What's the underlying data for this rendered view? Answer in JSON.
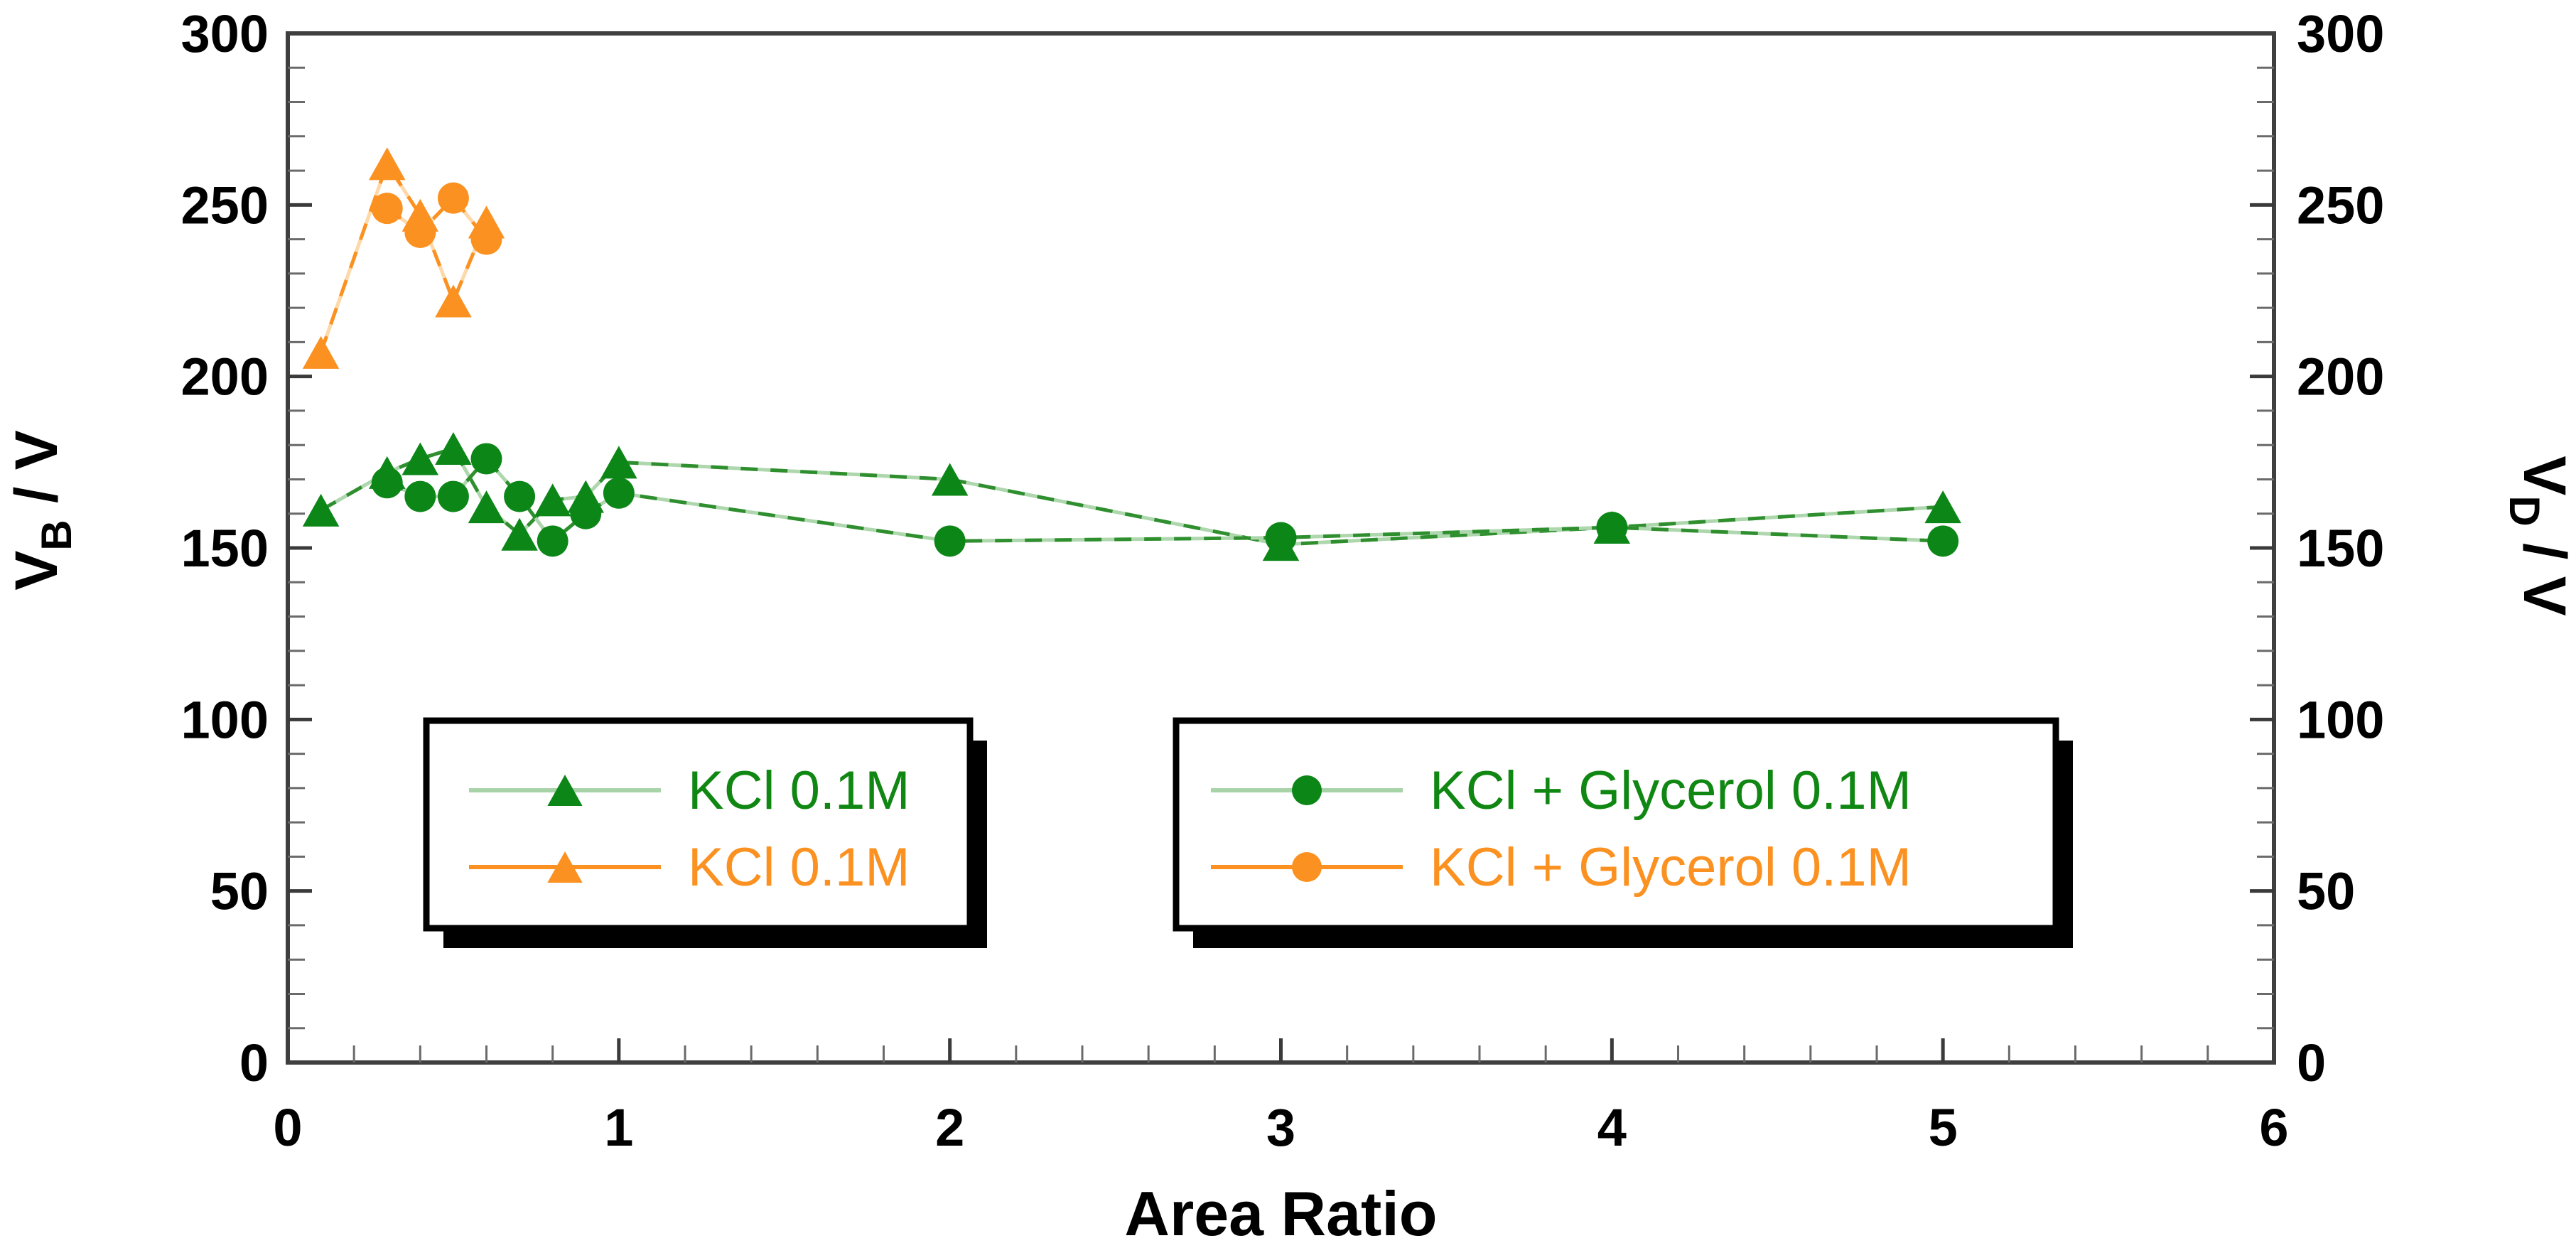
{
  "chart_data": {
    "type": "scatter",
    "subtype": "line-scatter, dual-y-axis",
    "title": "",
    "xlabel": "Area Ratio",
    "x_axis": {
      "min": 0,
      "max": 6,
      "major_tick_values": [
        0,
        1,
        2,
        3,
        4,
        5,
        6
      ],
      "minor_tick_step": 0.2,
      "tick_labels": [
        "0",
        "1",
        "2",
        "3",
        "4",
        "5",
        "6"
      ]
    },
    "y_axis_left": {
      "label_main": "V",
      "label_sub": "B",
      "label_rest": " / V",
      "min": 0,
      "max": 300,
      "major_tick_values": [
        0,
        50,
        100,
        150,
        200,
        250,
        300
      ],
      "minor_tick_step": 10,
      "tick_labels": [
        "0",
        "50",
        "100",
        "150",
        "200",
        "250",
        "300"
      ]
    },
    "y_axis_right": {
      "label_main": "V",
      "label_sub": "D",
      "label_rest": " / V",
      "min": 0,
      "max": 300,
      "major_tick_values": [
        0,
        50,
        100,
        150,
        200,
        250,
        300
      ],
      "minor_tick_step": 10,
      "tick_labels": [
        "0",
        "50",
        "100",
        "150",
        "200",
        "250",
        "300"
      ]
    },
    "grid": false,
    "series": [
      {
        "name": "KCl 0.1M",
        "marker": "triangle",
        "axis": "left",
        "color": "#0d8618",
        "line_dash_color": "#2f8f2f",
        "line_under_color": "#aed7ae",
        "points": [
          [
            0.1,
            161
          ],
          [
            0.3,
            172
          ],
          [
            0.4,
            176
          ],
          [
            0.5,
            179
          ],
          [
            0.6,
            162
          ],
          [
            0.7,
            154
          ],
          [
            0.8,
            164
          ],
          [
            0.9,
            165
          ],
          [
            1,
            175
          ],
          [
            2,
            170
          ],
          [
            3,
            151
          ],
          [
            4,
            156
          ],
          [
            5,
            162
          ]
        ]
      },
      {
        "name": "KCl + Glycerol 0.1M",
        "marker": "circle",
        "axis": "right",
        "color": "#0d8618",
        "line_dash_color": "#2f8f2f",
        "line_under_color": "#aed7ae",
        "points": [
          [
            0.3,
            169
          ],
          [
            0.4,
            165
          ],
          [
            0.5,
            165
          ],
          [
            0.6,
            176
          ],
          [
            0.7,
            165
          ],
          [
            0.8,
            152
          ],
          [
            0.9,
            160
          ],
          [
            1,
            166
          ],
          [
            2,
            152
          ],
          [
            3,
            153
          ],
          [
            4,
            156
          ],
          [
            5,
            152
          ]
        ]
      },
      {
        "name": "KCl 0.1M",
        "marker": "triangle",
        "axis": "left",
        "color": "#fb9120",
        "line_dash_color": "#fb9120",
        "line_under_color": "#fdd8a8",
        "points": [
          [
            0.1,
            207
          ],
          [
            0.3,
            262
          ],
          [
            0.4,
            247
          ],
          [
            0.5,
            222
          ],
          [
            0.6,
            245
          ]
        ]
      },
      {
        "name": "KCl + Glycerol 0.1M",
        "marker": "circle",
        "axis": "right",
        "color": "#fb9120",
        "line_dash_color": "#fb9120",
        "line_under_color": "#fdd8a8",
        "points": [
          [
            0.3,
            249
          ],
          [
            0.4,
            242
          ],
          [
            0.5,
            252
          ],
          [
            0.6,
            240
          ]
        ]
      }
    ],
    "legends": [
      {
        "entries": [
          {
            "label": "KCl 0.1M",
            "marker": "triangle",
            "marker_color": "#0d8618",
            "line_color": "#a8d3a8",
            "text_color": "#108713"
          },
          {
            "label": "KCl 0.1M",
            "marker": "triangle",
            "marker_color": "#fb9120",
            "line_color": "#fb9120",
            "text_color": "#fb9120"
          }
        ]
      },
      {
        "entries": [
          {
            "label": "KCl + Glycerol 0.1M",
            "marker": "circle",
            "marker_color": "#0d8618",
            "line_color": "#a8d3a8",
            "text_color": "#108713"
          },
          {
            "label": "KCl + Glycerol 0.1M",
            "marker": "circle",
            "marker_color": "#fb9120",
            "line_color": "#fb9120",
            "text_color": "#fb9120"
          }
        ]
      }
    ],
    "colors": {
      "frame": "#3f3f3f",
      "major_tick": "#3a3a3a",
      "minor_tick": "#6a6a6a",
      "tick_label": "#000000",
      "axis_title": "#000000",
      "legend_border": "#000000",
      "legend_shadow": "#000000",
      "background": "#ffffff"
    }
  }
}
